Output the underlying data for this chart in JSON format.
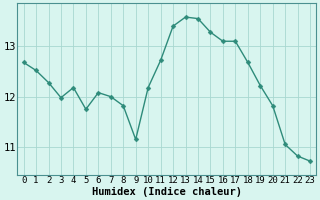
{
  "x": [
    0,
    1,
    2,
    3,
    4,
    5,
    6,
    7,
    8,
    9,
    10,
    11,
    12,
    13,
    14,
    15,
    16,
    17,
    18,
    19,
    20,
    21,
    22,
    23
  ],
  "y": [
    12.68,
    12.52,
    12.28,
    11.98,
    12.18,
    11.75,
    12.08,
    12.0,
    11.82,
    11.15,
    12.18,
    12.72,
    13.4,
    13.58,
    13.55,
    13.28,
    13.1,
    13.1,
    12.68,
    12.22,
    11.82,
    11.05,
    10.82,
    10.72
  ],
  "line_color": "#2e8b7a",
  "marker": "D",
  "markersize": 2.5,
  "linewidth": 1.0,
  "bg_color": "#d8f5ef",
  "grid_color": "#a8d8d0",
  "xlabel": "Humidex (Indice chaleur)",
  "yticks": [
    11,
    12,
    13
  ],
  "xtick_labels": [
    "0",
    "1",
    "2",
    "3",
    "4",
    "5",
    "6",
    "7",
    "8",
    "9",
    "10",
    "11",
    "12",
    "13",
    "14",
    "15",
    "16",
    "17",
    "18",
    "19",
    "20",
    "21",
    "22",
    "23"
  ],
  "xlim": [
    -0.5,
    23.5
  ],
  "ylim": [
    10.45,
    13.85
  ],
  "xlabel_fontsize": 7.5,
  "tick_fontsize": 6.5,
  "ytick_fontsize": 7.5
}
